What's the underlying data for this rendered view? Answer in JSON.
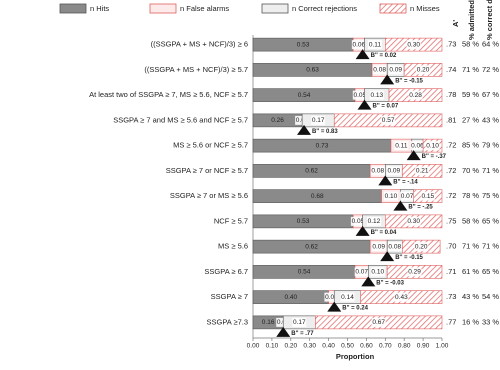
{
  "chart_data": {
    "type": "stacked-bar-horizontal",
    "categories": [
      "((SSGPA + MS + NCF)/3) ≥ 6",
      "((SSGPA + MS + NCF)/3) ≥ 5.7",
      "At least two of SSGPA ≥ 7, MS ≥ 5.6, NCF ≥ 5.7",
      "SSGPA ≥ 7 and MS ≥ 5.6 and NCF ≥ 5.7",
      "MS ≥ 5.6 or NCF ≥ 5.7",
      "SSGPA ≥ 7 or NCF ≥ 5.7",
      "SSGPA ≥ 7 or MS ≥ 5.6",
      "NCF ≥ 5.7",
      "MS ≥ 5.6",
      "SSGPA ≥ 6.7",
      "SSGPA ≥ 7",
      "SSGPA ≥7.3"
    ],
    "series": [
      {
        "name": "n Hits",
        "color": "#8a8a8a",
        "values": [
          0.53,
          0.63,
          0.54,
          0.26,
          0.73,
          0.62,
          0.68,
          0.53,
          0.62,
          0.54,
          0.4,
          0.16
        ],
        "value_labels": [
          "0.53",
          "0.63",
          "0.54",
          "0.26",
          "0.73",
          "0.62",
          "0.68",
          "0.53",
          "0.62",
          "0.54",
          "0.40",
          "0.16"
        ]
      },
      {
        "name": "n False alarms",
        "color": "#fdeaea",
        "values": [
          0.06,
          0.08,
          0.05,
          0.0,
          0.11,
          0.08,
          0.1,
          0.05,
          0.09,
          0.07,
          0.03,
          0.0
        ],
        "value_labels": [
          "0.06",
          "0.08",
          "0.05",
          "0.00",
          "0.11",
          "0.08",
          "0.10",
          "0.05",
          "0.09",
          "0.07",
          "0.03",
          "0.00"
        ]
      },
      {
        "name": "n Correct rejections",
        "color": "#eeeeee",
        "values": [
          0.11,
          0.09,
          0.13,
          0.17,
          0.06,
          0.09,
          0.07,
          0.12,
          0.08,
          0.1,
          0.14,
          0.17
        ],
        "value_labels": [
          "0.11",
          "0.09",
          "0.13",
          "0.17",
          "0.06",
          "0.09",
          "0.07",
          "0.12",
          "0.08",
          "0.10",
          "0.14",
          "0.17"
        ]
      },
      {
        "name": "n Misses",
        "color": "#e06060",
        "values": [
          0.3,
          0.2,
          0.28,
          0.57,
          0.1,
          0.21,
          0.15,
          0.3,
          0.2,
          0.29,
          0.43,
          0.67
        ],
        "value_labels": [
          "0.30",
          "0.20",
          "0.28",
          "0.57",
          "0.10",
          "0.21",
          "0.15",
          "0.30",
          "0.20",
          "0.29",
          "0.43",
          "0.67"
        ]
      }
    ],
    "b_values": [
      0.02,
      -0.15,
      0.07,
      0.83,
      -0.37,
      -0.14,
      -0.25,
      0.04,
      -0.15,
      -0.03,
      0.24,
      0.77
    ],
    "b_labels": [
      "B'' = 0.02",
      "B'' = -0.15",
      "B'' = 0.07",
      "B'' = 0.83",
      "B'' = -.37",
      "B'' = -.14",
      "B'' = -.25",
      "B'' = 0.04",
      "B'' = -0.15",
      "B'' = -0.03",
      "B'' = 0.24",
      "B'' = .77"
    ],
    "a_prime_header": "A'",
    "a_prime": [
      0.73,
      0.74,
      0.78,
      0.81,
      0.72,
      0.72,
      0.72,
      0.75,
      0.7,
      0.71,
      0.73,
      0.77
    ],
    "a_prime_labels": [
      ".73",
      ".74",
      ".78",
      ".81",
      ".72",
      ".72",
      ".72",
      ".75",
      ".70",
      ".71",
      ".73",
      ".77"
    ],
    "admitted_header": "% admitted",
    "admitted": [
      58,
      71,
      59,
      27,
      85,
      70,
      78,
      58,
      71,
      61,
      43,
      16
    ],
    "admitted_labels": [
      "58 %",
      "71 %",
      "59 %",
      "27 %",
      "85 %",
      "70 %",
      "78 %",
      "58 %",
      "71 %",
      "61 %",
      "43 %",
      "16 %"
    ],
    "correct_header": "% correct decisions",
    "correct": [
      64,
      72,
      67,
      43,
      79,
      71,
      75,
      65,
      71,
      65,
      54,
      33
    ],
    "correct_labels": [
      "64 %",
      "72 %",
      "67 %",
      "43 %",
      "79 %",
      "71 %",
      "75 %",
      "65 %",
      "71 %",
      "65 %",
      "54 %",
      "33 %"
    ],
    "x_label": "Proportion",
    "xlim": [
      0,
      1
    ],
    "xticks": [
      {
        "value": 0,
        "label": "0.00"
      },
      {
        "value": 0.1,
        "label": "0.10"
      },
      {
        "value": 0.2,
        "label": "0.20"
      },
      {
        "value": 0.3,
        "label": "0.30"
      },
      {
        "value": 0.4,
        "label": "0.40"
      },
      {
        "value": 0.5,
        "label": "0.50"
      },
      {
        "value": 0.6,
        "label": "0.60"
      },
      {
        "value": 0.7,
        "label": "0.70"
      },
      {
        "value": 0.8,
        "label": "0.80"
      },
      {
        "value": 0.9,
        "label": "0.90"
      },
      {
        "value": 1,
        "label": "1.00"
      }
    ]
  }
}
